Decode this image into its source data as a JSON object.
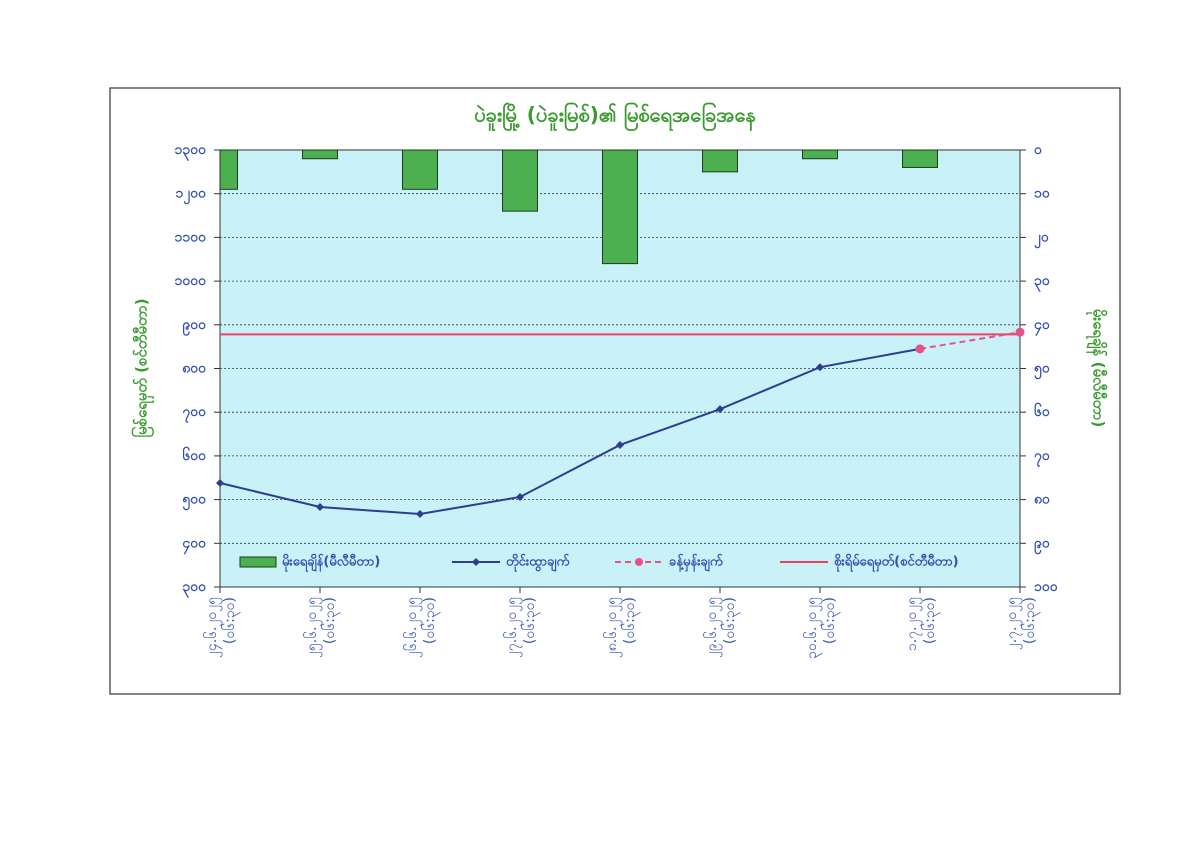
{
  "chart_data": {
    "type": "bar-line",
    "title": "ပဲခူးမြို့ (ပဲခူးမြစ်)၏ မြစ်ရေအခြေအနေ",
    "y_label": "မြစ်ရေမှတ် (စင်တီမီတာ)",
    "y2_label": "မိုးရေချိန် (မီလီမီတာ)",
    "categories": [
      "၂၄.၆.၂၀၂၅",
      "၂၅.၆.၂၀၂၅",
      "၂၆.၆.၂၀၂၅",
      "၂၇.၆.၂၀၂၅",
      "၂၈.၆.၂၀၂၅",
      "၂၉.၆.၂၀၂၅",
      "၃၀.၆.၂၀၂၅",
      "၁.၇.၂၀၂၅",
      "၂.၇.၂၀၂၅"
    ],
    "times": [
      "(၀၆:၃၀)",
      "(၀၆:၃၀)",
      "(၀၆:၃၀)",
      "(၀၆:၃၀)",
      "(၀၆:၃၀)",
      "(၀၆:၃၀)",
      "(၀၆:၃၀)",
      "(၀၆:၃၀)",
      "(၀၆:၃၀)"
    ],
    "ylim": [
      300,
      1300
    ],
    "yticks": [
      {
        "value": 300,
        "label": "၃၀၀"
      },
      {
        "value": 400,
        "label": "၄၀၀"
      },
      {
        "value": 500,
        "label": "၅၀၀"
      },
      {
        "value": 600,
        "label": "၆၀၀"
      },
      {
        "value": 700,
        "label": "၇၀၀"
      },
      {
        "value": 800,
        "label": "၈၀၀"
      },
      {
        "value": 900,
        "label": "၉၀၀"
      },
      {
        "value": 1000,
        "label": "၁၀၀၀"
      },
      {
        "value": 1100,
        "label": "၁၁၀၀"
      },
      {
        "value": 1200,
        "label": "၁၂၀၀"
      },
      {
        "value": 1300,
        "label": "၁၃၀၀"
      }
    ],
    "y2lim": [
      0,
      100
    ],
    "y2_inverted": true,
    "y2ticks": [
      {
        "value": 0,
        "label": "၀"
      },
      {
        "value": 10,
        "label": "၁၀"
      },
      {
        "value": 20,
        "label": "၂၀"
      },
      {
        "value": 30,
        "label": "၃၀"
      },
      {
        "value": 40,
        "label": "၄၀"
      },
      {
        "value": 50,
        "label": "၅၀"
      },
      {
        "value": 60,
        "label": "၆၀"
      },
      {
        "value": 70,
        "label": "၇၀"
      },
      {
        "value": 80,
        "label": "၈၀"
      },
      {
        "value": 90,
        "label": "၉၀"
      },
      {
        "value": 100,
        "label": "၁၀၀"
      }
    ],
    "grid": true,
    "series": [
      {
        "name": "မိုးရေချိန်(မီလီမီတာ)",
        "kind": "bar",
        "axis": "y2",
        "color": "#4caf50",
        "values": [
          9,
          2,
          9,
          14,
          26,
          5,
          2,
          4,
          null
        ]
      },
      {
        "name": "တိုင်းထွာချက်",
        "kind": "line",
        "color": "#2e3d8f",
        "values": [
          538,
          483,
          467,
          506,
          625,
          707,
          803,
          845,
          null
        ]
      },
      {
        "name": "ခန့်မှန်းချက်",
        "kind": "dashed",
        "color": "#e8508a",
        "values": [
          null,
          null,
          null,
          null,
          null,
          null,
          null,
          845,
          883
        ]
      }
    ],
    "danger": {
      "name": "စိုးရိမ်ရေမှတ်(စင်တီမီတာ)",
      "color": "#f04060",
      "value": 878
    }
  }
}
